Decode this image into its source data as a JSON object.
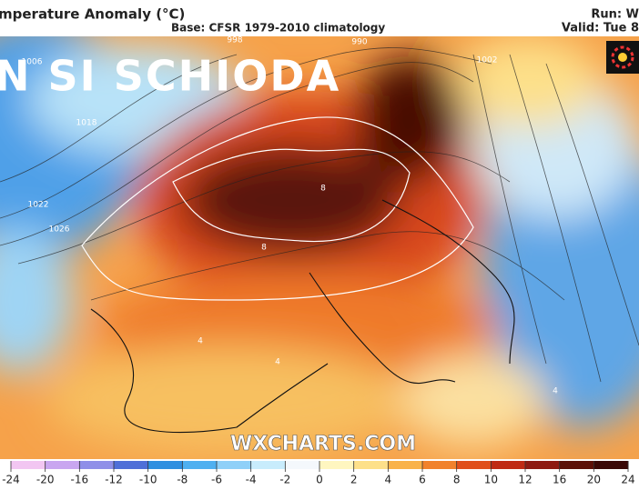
{
  "header": {
    "title": "mperature Anomaly (°C)",
    "subtitle": "Base: CFSR 1979-2010 climatology",
    "run": "Run: W",
    "valid": "Valid: Tue 8"
  },
  "overlay_text": "N SI SCHIODA",
  "watermark": "WXCHARTS.COM",
  "contour_labels": [
    "998",
    "1006",
    "1018",
    "1022",
    "1026",
    "990",
    "1002",
    "8",
    "8",
    "4",
    "4",
    "4"
  ],
  "colorbar": {
    "ticks": [
      -24,
      -20,
      -16,
      -12,
      -10,
      -8,
      -6,
      -4,
      -2,
      0,
      2,
      4,
      6,
      8,
      10,
      12,
      16,
      20,
      24
    ],
    "colors": [
      "#f2c6f2",
      "#c9a6f0",
      "#8f8fe8",
      "#4f6fd8",
      "#2f8fe0",
      "#4fb0f0",
      "#8fd0f8",
      "#c8ecfc",
      "#f4f8fc",
      "#fff6c0",
      "#fde08a",
      "#f9b24a",
      "#f1822c",
      "#e0501c",
      "#bf2a14",
      "#8e1a12",
      "#5c1008",
      "#3a0806"
    ]
  }
}
